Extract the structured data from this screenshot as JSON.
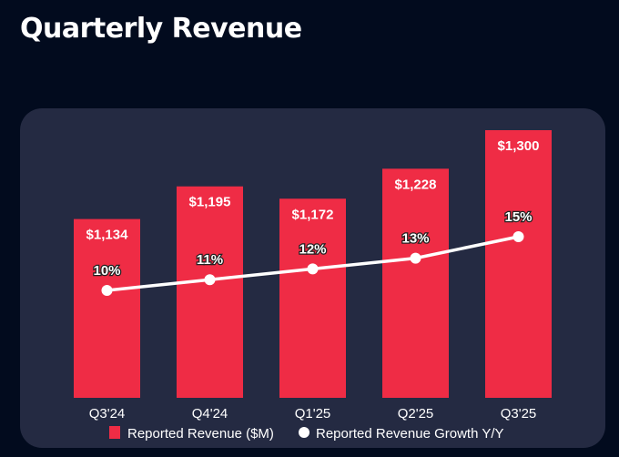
{
  "chart_data": {
    "type": "bar",
    "title": "Quarterly Revenue",
    "categories": [
      "Q3'24",
      "Q4'24",
      "Q1'25",
      "Q2'25",
      "Q3'25"
    ],
    "series": [
      {
        "name": "Reported Revenue ($M)",
        "type": "bar",
        "values": [
          1134,
          1195,
          1172,
          1228,
          1300
        ],
        "labels": [
          "$1,134",
          "$1,195",
          "$1,172",
          "$1,228",
          "$1,300"
        ],
        "color": "#ef2c45"
      },
      {
        "name": "Reported Revenue Growth Y/Y",
        "type": "line",
        "values": [
          10,
          11,
          12,
          13,
          15
        ],
        "labels": [
          "10%",
          "11%",
          "12%",
          "13%",
          "15%"
        ],
        "color": "#ffffff"
      }
    ],
    "ylim": [
      800,
      1320
    ],
    "y2lim": [
      0,
      16
    ],
    "grid": false,
    "legend": "bottom"
  },
  "colors": {
    "background": "#020b1e",
    "card": "#242a42"
  }
}
